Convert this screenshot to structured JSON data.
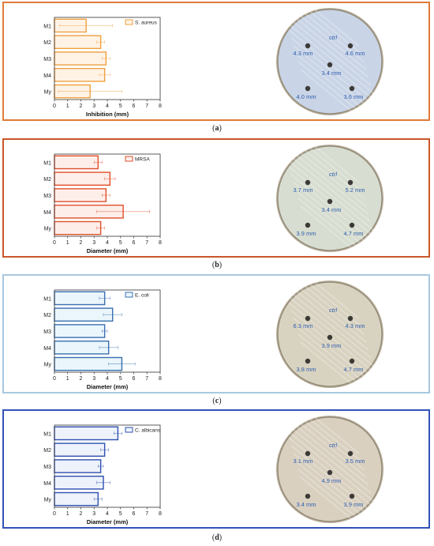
{
  "chart_data": [
    {
      "type": "bar",
      "orientation": "horizontal",
      "panel_label": "a",
      "categories": [
        "M1",
        "M2",
        "M3",
        "M4",
        "My"
      ],
      "values": [
        2.4,
        3.5,
        3.9,
        3.8,
        2.7
      ],
      "errors": [
        2.0,
        0.3,
        0.3,
        0.4,
        2.4
      ],
      "legend": "S. aureus",
      "xlabel": "Inhibition (mm)",
      "xlim": [
        0,
        8
      ],
      "xticks": [
        "0",
        "1",
        "2",
        "3",
        "4",
        "5",
        "6",
        "7",
        "8"
      ],
      "color": "#f0a040",
      "dish_labels": [
        "4.3 mm",
        "4.6 mm",
        "3.4 mm",
        "4.0 mm",
        "3.6 mm"
      ],
      "dish_marker": "ctrl"
    },
    {
      "type": "bar",
      "orientation": "horizontal",
      "panel_label": "b",
      "categories": [
        "M1",
        "M2",
        "M3",
        "M4",
        "My"
      ],
      "values": [
        3.3,
        4.2,
        3.9,
        5.2,
        3.5
      ],
      "errors": [
        0.3,
        0.4,
        0.3,
        2.0,
        0.3
      ],
      "legend": "MRSA",
      "xlabel": "Diameter (mm)",
      "xlim": [
        0,
        8
      ],
      "xticks": [
        "0",
        "1",
        "2",
        "3",
        "4",
        "5",
        "6",
        "7",
        "8"
      ],
      "color": "#e0502a",
      "dish_labels": [
        "3.7 mm",
        "5.2 mm",
        "3.4 mm",
        "3.9 mm",
        "4.7 mm"
      ],
      "dish_marker": "ctrl"
    },
    {
      "type": "bar",
      "orientation": "horizontal",
      "panel_label": "c",
      "categories": [
        "M1",
        "M2",
        "M3",
        "M4",
        "My"
      ],
      "values": [
        3.8,
        4.4,
        3.8,
        4.1,
        5.1
      ],
      "errors": [
        0.4,
        0.7,
        0.2,
        0.7,
        1.0
      ],
      "legend": "E. coli",
      "xlabel": "Diameter (mm)",
      "xlim": [
        0,
        8
      ],
      "xticks": [
        "0",
        "1",
        "2",
        "3",
        "4",
        "5",
        "6",
        "7",
        "8"
      ],
      "color": "#3a6fb0",
      "dish_labels": [
        "6.3 mm",
        "4.3 mm",
        "3.9 mm",
        "3.8 mm",
        "4.7 mm"
      ],
      "dish_marker": "ctrl"
    },
    {
      "type": "bar",
      "orientation": "horizontal",
      "panel_label": "d",
      "categories": [
        "M1",
        "M2",
        "M3",
        "M4",
        "My"
      ],
      "values": [
        4.8,
        3.8,
        3.5,
        3.7,
        3.3
      ],
      "errors": [
        0.3,
        0.3,
        0.2,
        0.5,
        0.3
      ],
      "legend": "C. albicans",
      "xlabel": "Diameter (mm)",
      "xlim": [
        0,
        8
      ],
      "xticks": [
        "0",
        "1",
        "2",
        "3",
        "4",
        "5",
        "6",
        "7",
        "8"
      ],
      "color": "#2e4fb0",
      "dish_labels": [
        "3.1 mm",
        "3.5 mm",
        "4.9 mm",
        "3.4 mm",
        "3.9 mm"
      ],
      "dish_marker": "ctrl"
    }
  ],
  "panels": [
    {
      "border": "#e07b39",
      "fill": "#fff3e6",
      "dish_tint": "#c9d4e6"
    },
    {
      "border": "#c9572a",
      "fill": "#fdeeea",
      "dish_tint": "#d7ddd0"
    },
    {
      "border": "#a9c8e0",
      "fill": "#eaf6fb",
      "dish_tint": "#d8d2c0"
    },
    {
      "border": "#3352b8",
      "fill": "#eef2fb",
      "dish_tint": "#d9d0c0"
    }
  ]
}
